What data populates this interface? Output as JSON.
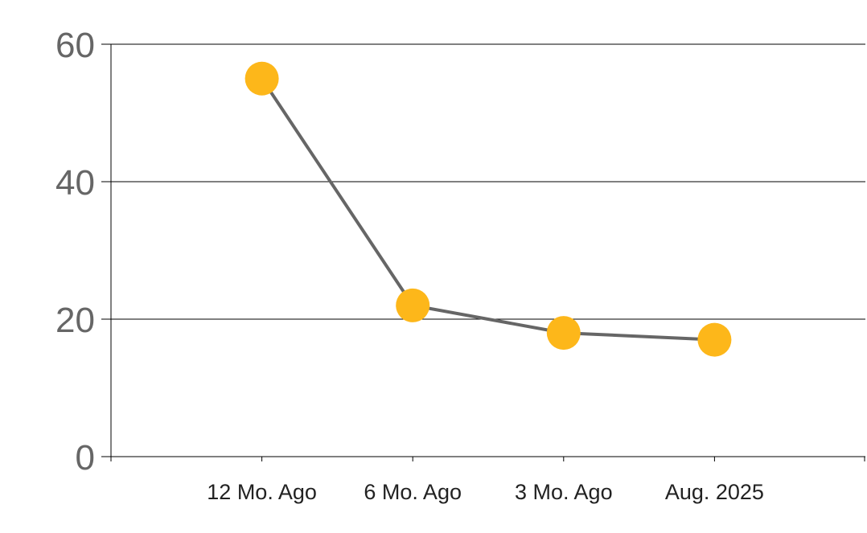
{
  "chart_data": {
    "type": "line",
    "categories": [
      "12 Mo. Ago",
      "6 Mo. Ago",
      "3 Mo. Ago",
      "Aug. 2025"
    ],
    "series": [
      {
        "values": [
          55,
          22,
          18,
          17
        ]
      }
    ],
    "ylim": [
      0,
      60
    ],
    "yticks": [
      0,
      20,
      40,
      60
    ],
    "grid": true,
    "legend": "none",
    "colors": {
      "line": "#666666",
      "marker": "#FDB71A",
      "grid": "#000000",
      "axis": "#000000"
    }
  }
}
